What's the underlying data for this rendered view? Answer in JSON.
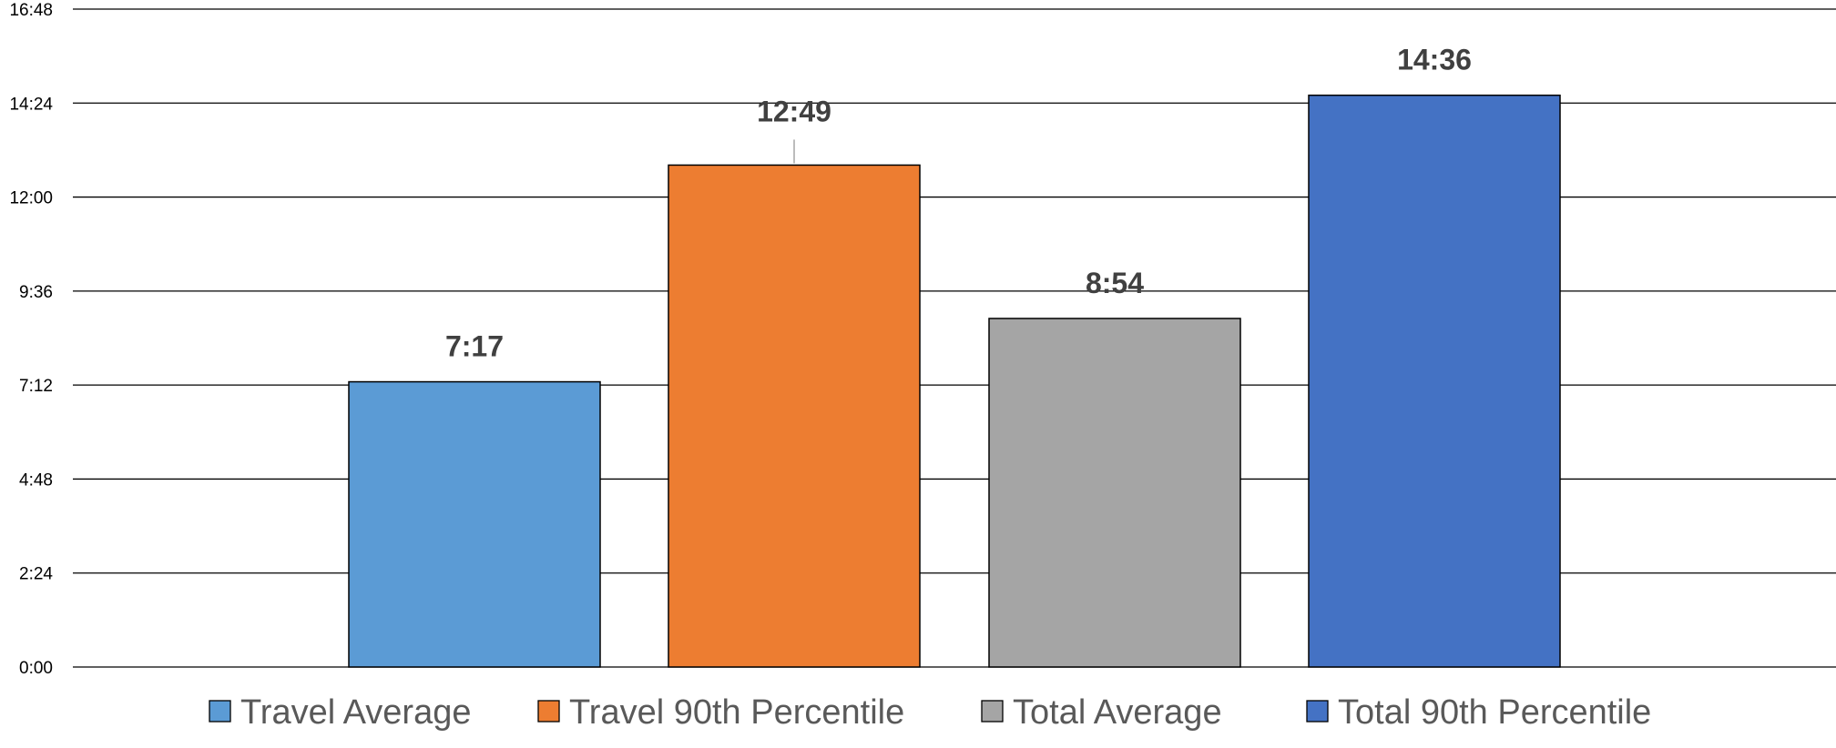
{
  "chart_data": {
    "type": "bar",
    "categories": [
      "Travel Average",
      "Travel 90th Percentile",
      "Total Average",
      "Total 90th Percentile"
    ],
    "values": [
      437,
      769,
      534,
      876
    ],
    "value_labels": [
      "7:17",
      "12:49",
      "8:54",
      "14:36"
    ],
    "value_units": "seconds (displayed as m:ss)",
    "colors": [
      "#5B9BD5",
      "#ED7D31",
      "#A5A5A5",
      "#4472C4"
    ],
    "ylim": [
      0,
      1008
    ],
    "yticks": [
      0,
      144,
      288,
      432,
      576,
      720,
      864,
      1008
    ],
    "ytick_labels": [
      "0:00",
      "2:24",
      "4:48",
      "7:12",
      "9:36",
      "12:00",
      "14:24",
      "16:48"
    ],
    "grid": true,
    "legend_position": "bottom",
    "title": "",
    "xlabel": "",
    "ylabel": ""
  }
}
